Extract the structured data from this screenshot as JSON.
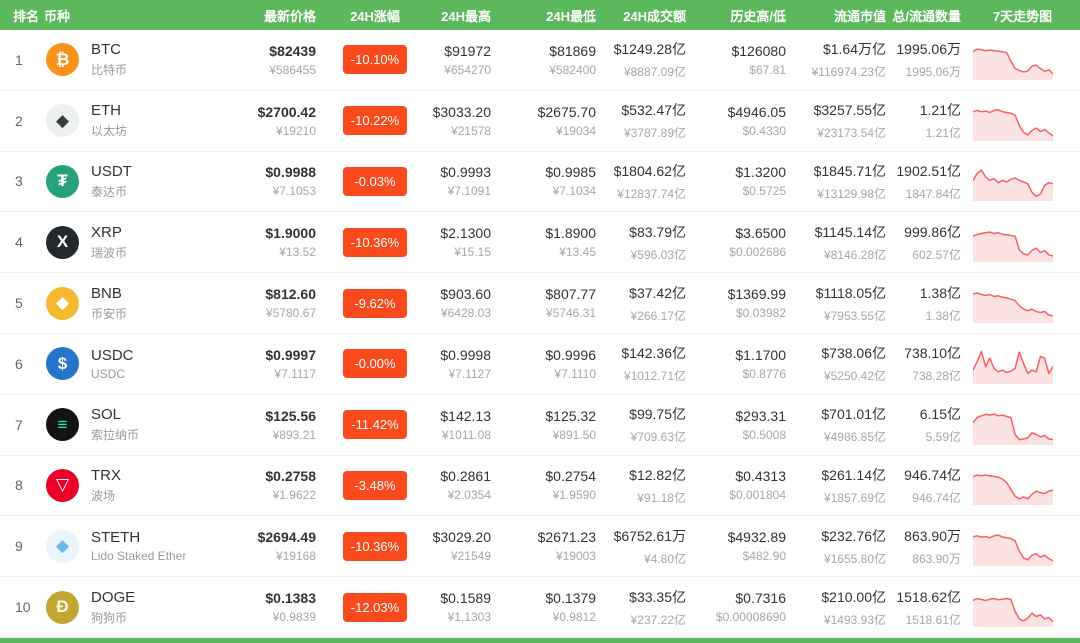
{
  "colors": {
    "header_bg": "#5cb85c",
    "badge_bg": "#f84a1c",
    "spark_line": "#f56060",
    "spark_fill": "#fce3e3"
  },
  "header": {
    "columns": [
      "排名",
      "币种",
      "最新价格",
      "24H涨幅",
      "24H最高",
      "24H最低",
      "24H成交额",
      "历史高/低",
      "流通市值",
      "总/流通数量",
      "7天走势图"
    ]
  },
  "rows": [
    {
      "rank": "1",
      "symbol": "BTC",
      "name": "比特币",
      "icon": {
        "name": "btc-icon",
        "glyph": "₿",
        "bg": "#f7931a",
        "fg": "#ffffff"
      },
      "price_usd": "$82439",
      "price_cny": "¥586455",
      "change": "-10.10%",
      "high_usd": "$91972",
      "high_cny": "¥654270",
      "low_usd": "$81869",
      "low_cny": "¥582400",
      "volume_usd": "$1249.28亿",
      "volume_cny": "¥8887.09亿",
      "ath": "$126080",
      "atl": "$67.81",
      "mcap_usd": "$1.64万亿",
      "mcap_cny": "¥116974.23亿",
      "supply_total": "1995.06万",
      "supply_circ": "1995.06万",
      "sparkline": [
        78,
        85,
        83,
        80,
        82,
        80,
        79,
        77,
        74,
        50,
        28,
        22,
        18,
        20,
        35,
        38,
        28,
        20,
        24,
        12
      ]
    },
    {
      "rank": "2",
      "symbol": "ETH",
      "name": "以太坊",
      "icon": {
        "name": "eth-icon",
        "glyph": "◆",
        "bg": "#ecf0f1",
        "fg": "#3c3c3d"
      },
      "price_usd": "$2700.42",
      "price_cny": "¥19210",
      "change": "-10.22%",
      "high_usd": "$3033.20",
      "high_cny": "¥21578",
      "low_usd": "$2675.70",
      "low_cny": "¥19034",
      "volume_usd": "$532.47亿",
      "volume_cny": "¥3787.89亿",
      "ath": "$4946.05",
      "atl": "$0.4330",
      "mcap_usd": "$3257.55亿",
      "mcap_cny": "¥23173.54亿",
      "supply_total": "1.21亿",
      "supply_circ": "1.21亿",
      "sparkline": [
        80,
        84,
        80,
        82,
        78,
        84,
        86,
        80,
        78,
        76,
        70,
        40,
        20,
        12,
        25,
        32,
        22,
        28,
        18,
        10
      ]
    },
    {
      "rank": "3",
      "symbol": "USDT",
      "name": "泰达币",
      "icon": {
        "name": "usdt-icon",
        "glyph": "₮",
        "bg": "#26a17b",
        "fg": "#ffffff"
      },
      "price_usd": "$0.9988",
      "price_cny": "¥7.1053",
      "change": "-0.03%",
      "high_usd": "$0.9993",
      "high_cny": "¥7.1091",
      "low_usd": "$0.9985",
      "low_cny": "¥7.1034",
      "volume_usd": "$1804.62亿",
      "volume_cny": "¥12837.74亿",
      "ath": "$1.3200",
      "atl": "$0.5725",
      "mcap_usd": "$1845.71亿",
      "mcap_cny": "¥13129.98亿",
      "supply_total": "1902.51亿",
      "supply_circ": "1847.84亿",
      "sparkline": [
        55,
        75,
        85,
        65,
        55,
        60,
        48,
        55,
        50,
        58,
        62,
        55,
        50,
        45,
        20,
        8,
        15,
        40,
        48,
        45
      ]
    },
    {
      "rank": "4",
      "symbol": "XRP",
      "name": "瑞波币",
      "icon": {
        "name": "xrp-icon",
        "glyph": "X",
        "bg": "#23292f",
        "fg": "#ffffff"
      },
      "price_usd": "$1.9000",
      "price_cny": "¥13.52",
      "change": "-10.36%",
      "high_usd": "$2.1300",
      "high_cny": "¥15.15",
      "low_usd": "$1.8900",
      "low_cny": "¥13.45",
      "volume_usd": "$83.79亿",
      "volume_cny": "¥596.03亿",
      "ath": "$3.6500",
      "atl": "$0.002686",
      "mcap_usd": "$1145.14亿",
      "mcap_cny": "¥8146.28亿",
      "supply_total": "999.86亿",
      "supply_circ": "602.57亿",
      "sparkline": [
        70,
        75,
        78,
        80,
        82,
        78,
        80,
        76,
        74,
        72,
        70,
        30,
        18,
        15,
        28,
        35,
        22,
        28,
        15,
        12
      ]
    },
    {
      "rank": "5",
      "symbol": "BNB",
      "name": "币安币",
      "icon": {
        "name": "bnb-icon",
        "glyph": "◆",
        "bg": "#f3ba2f",
        "fg": "#ffffff"
      },
      "price_usd": "$812.60",
      "price_cny": "¥5780.67",
      "change": "-9.62%",
      "high_usd": "$903.60",
      "high_cny": "¥6428.03",
      "low_usd": "$807.77",
      "low_cny": "¥5746.31",
      "volume_usd": "$37.42亿",
      "volume_cny": "¥266.17亿",
      "ath": "$1369.99",
      "atl": "$0.03982",
      "mcap_usd": "$1118.05亿",
      "mcap_cny": "¥7953.55亿",
      "supply_total": "1.38亿",
      "supply_circ": "1.38亿",
      "sparkline": [
        80,
        82,
        78,
        75,
        78,
        72,
        74,
        70,
        68,
        64,
        60,
        45,
        35,
        30,
        35,
        28,
        25,
        28,
        18,
        15
      ]
    },
    {
      "rank": "6",
      "symbol": "USDC",
      "name": "USDC",
      "icon": {
        "name": "usdc-icon",
        "glyph": "$",
        "bg": "#2775ca",
        "fg": "#ffffff"
      },
      "price_usd": "$0.9997",
      "price_cny": "¥7.1117",
      "change": "-0.00%",
      "high_usd": "$0.9998",
      "high_cny": "¥7.1127",
      "low_usd": "$0.9996",
      "low_cny": "¥7.1110",
      "volume_usd": "$142.36亿",
      "volume_cny": "¥1012.71亿",
      "ath": "$1.1700",
      "atl": "$0.8776",
      "mcap_usd": "$738.06亿",
      "mcap_cny": "¥5250.42亿",
      "supply_total": "738.10亿",
      "supply_circ": "738.28亿",
      "sparkline": [
        35,
        60,
        90,
        45,
        70,
        40,
        30,
        35,
        28,
        32,
        40,
        88,
        55,
        25,
        35,
        30,
        75,
        70,
        25,
        45
      ]
    },
    {
      "rank": "7",
      "symbol": "SOL",
      "name": "索拉纳币",
      "icon": {
        "name": "sol-icon",
        "glyph": "≡",
        "bg": "#131313",
        "fg": "#19fb9b"
      },
      "price_usd": "$125.56",
      "price_cny": "¥893.21",
      "change": "-11.42%",
      "high_usd": "$142.13",
      "high_cny": "¥1011.08",
      "low_usd": "$125.32",
      "low_cny": "¥891.50",
      "volume_usd": "$99.75亿",
      "volume_cny": "¥709.63亿",
      "ath": "$293.31",
      "atl": "$0.5008",
      "mcap_usd": "$701.01亿",
      "mcap_cny": "¥4986.85亿",
      "supply_total": "6.15亿",
      "supply_circ": "5.59亿",
      "sparkline": [
        60,
        75,
        80,
        84,
        82,
        85,
        80,
        82,
        78,
        75,
        25,
        10,
        12,
        15,
        30,
        25,
        18,
        22,
        12,
        10
      ]
    },
    {
      "rank": "8",
      "symbol": "TRX",
      "name": "波场",
      "icon": {
        "name": "trx-icon",
        "glyph": "▽",
        "bg": "#eb0029",
        "fg": "#ffffff"
      },
      "price_usd": "$0.2758",
      "price_cny": "¥1.9622",
      "change": "-3.48%",
      "high_usd": "$0.2861",
      "high_cny": "¥2.0354",
      "low_usd": "$0.2754",
      "low_cny": "¥1.9590",
      "volume_usd": "$12.82亿",
      "volume_cny": "¥91.18亿",
      "ath": "$0.4313",
      "atl": "$0.001804",
      "mcap_usd": "$261.14亿",
      "mcap_cny": "¥1857.69亿",
      "supply_total": "946.74亿",
      "supply_circ": "946.74亿",
      "sparkline": [
        78,
        82,
        80,
        82,
        80,
        78,
        76,
        70,
        60,
        40,
        20,
        12,
        18,
        12,
        25,
        35,
        30,
        28,
        35,
        38
      ]
    },
    {
      "rank": "9",
      "symbol": "STETH",
      "name": "Lido Staked Ether",
      "icon": {
        "name": "steth-icon",
        "glyph": "◆",
        "bg": "#e9f4fb",
        "fg": "#6fb6e9"
      },
      "price_usd": "$2694.49",
      "price_cny": "¥19168",
      "change": "-10.36%",
      "high_usd": "$3029.20",
      "high_cny": "¥21549",
      "low_usd": "$2671.23",
      "low_cny": "¥19003",
      "volume_usd": "$6752.61万",
      "volume_cny": "¥4.80亿",
      "ath": "$4932.89",
      "atl": "$482.90",
      "mcap_usd": "$232.76亿",
      "mcap_cny": "¥1655.80亿",
      "supply_total": "863.90万",
      "supply_circ": "863.90万",
      "sparkline": [
        80,
        83,
        79,
        81,
        77,
        83,
        85,
        79,
        77,
        75,
        68,
        38,
        18,
        12,
        26,
        30,
        20,
        26,
        16,
        9
      ]
    },
    {
      "rank": "10",
      "symbol": "DOGE",
      "name": "狗狗币",
      "icon": {
        "name": "doge-icon",
        "glyph": "Ð",
        "bg": "#c2a633",
        "fg": "#fff8e1"
      },
      "price_usd": "$0.1383",
      "price_cny": "¥0.9839",
      "change": "-12.03%",
      "high_usd": "$0.1589",
      "high_cny": "¥1.1303",
      "low_usd": "$0.1379",
      "low_cny": "¥0.9812",
      "volume_usd": "$33.35亿",
      "volume_cny": "¥237.22亿",
      "ath": "$0.7316",
      "atl": "$0.00008690",
      "mcap_usd": "$210.00亿",
      "mcap_cny": "¥1493.93亿",
      "supply_total": "1518.62亿",
      "supply_circ": "1518.61亿",
      "sparkline": [
        72,
        78,
        75,
        72,
        76,
        78,
        74,
        76,
        78,
        75,
        40,
        18,
        12,
        20,
        35,
        25,
        30,
        18,
        22,
        10
      ]
    }
  ]
}
